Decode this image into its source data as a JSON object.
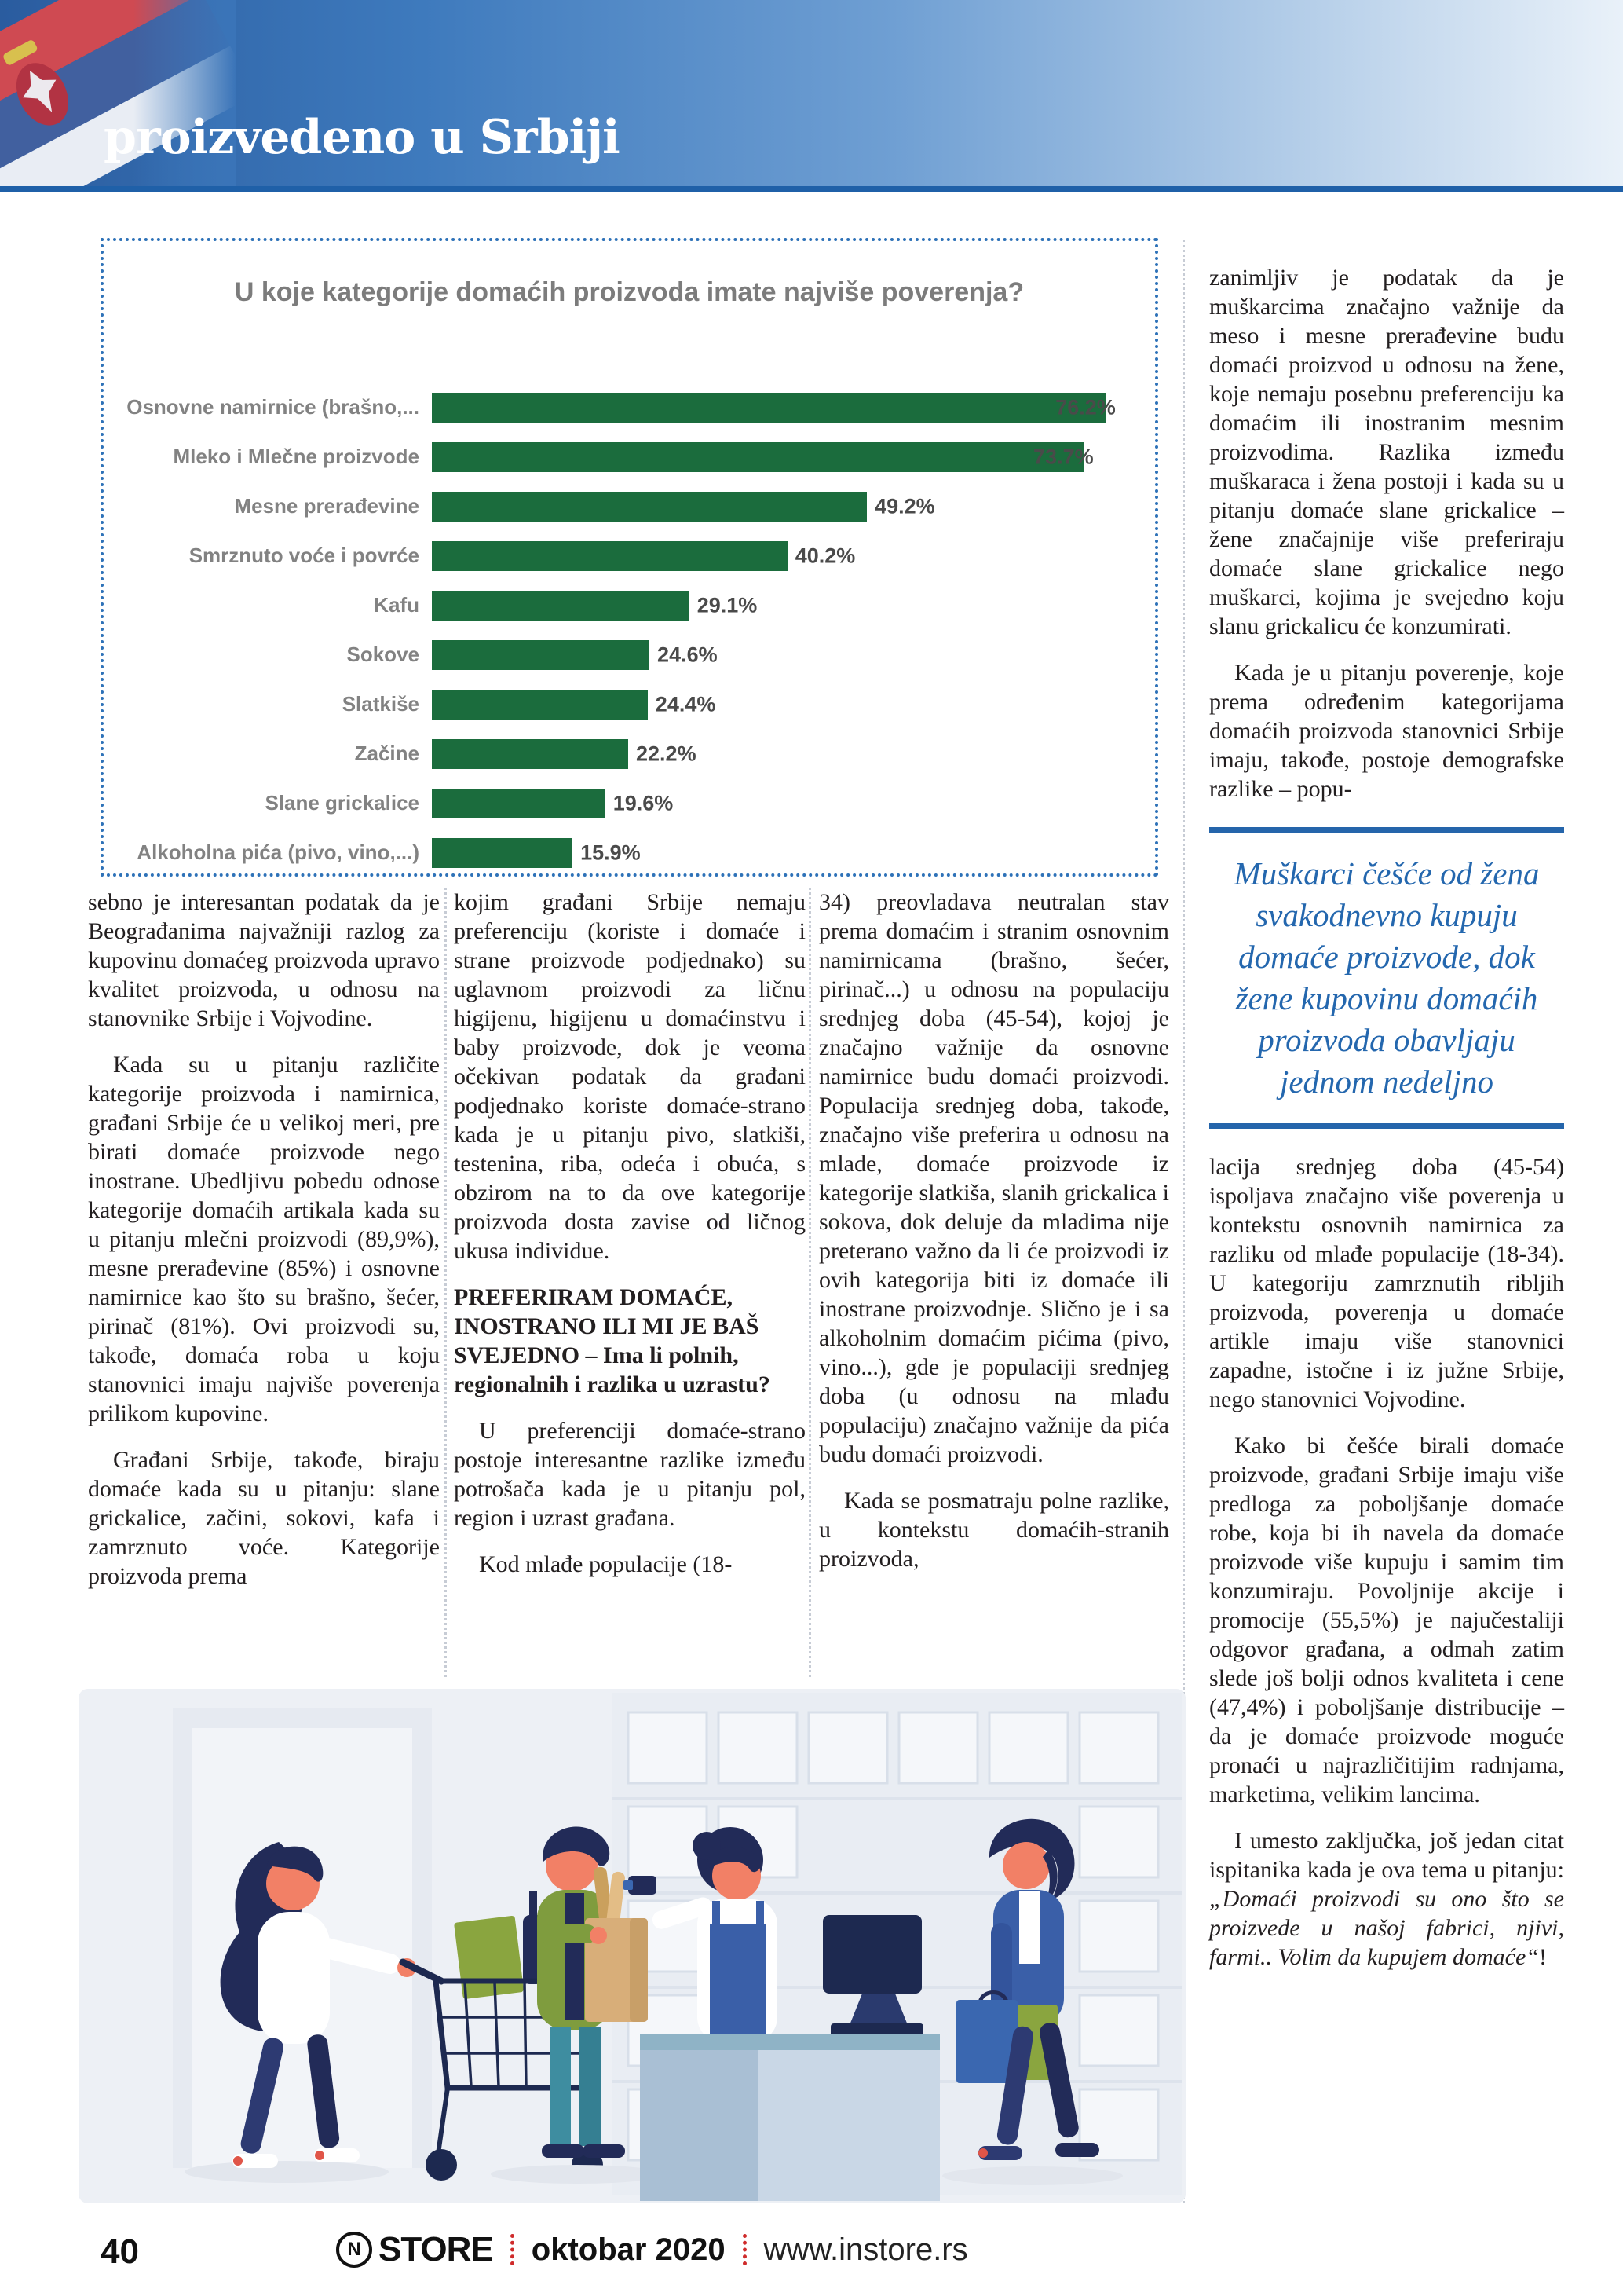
{
  "header": {
    "title": "proizvedeno u Srbiji"
  },
  "chart_data": {
    "type": "bar",
    "orientation": "horizontal",
    "title": "U koje kategorije domaćih proizvoda imate najviše poverenja?",
    "categories": [
      "Osnovne namirnice (brašno,...",
      "Mleko i Mlečne proizvode",
      "Mesne prerađevine",
      "Smrznuto voće i povrće",
      "Kafu",
      "Sokove",
      "Slatkiše",
      "Začine",
      "Slane grickalice",
      "Alkoholna pića (pivo, vino,...)"
    ],
    "values": [
      76.2,
      73.7,
      49.2,
      40.2,
      29.1,
      24.6,
      24.4,
      22.2,
      19.6,
      15.9
    ],
    "value_labels": [
      "76.2%",
      "73.7%",
      "49.2%",
      "40.2%",
      "29.1%",
      "24.6%",
      "24.4%",
      "22.2%",
      "19.6%",
      "15.9%"
    ],
    "xlim": [
      0,
      80
    ],
    "bar_color": "#1b6c3d",
    "grid": false,
    "legend": false
  },
  "article": {
    "col1": {
      "p1": "sebno je interesantan podatak da je Beograđanima najvažniji razlog za kupovinu domaćeg proizvoda upravo kvalitet proizvoda, u odnosu na stanovnike Srbije i Vojvodine.",
      "p2": "Kada su u pitanju različite kategorije proizvoda i namirnica, građani Srbije će u velikoj meri, pre birati domaće proizvode nego inostrane. Ubedljivu pobedu odnose kategorije domaćih artikala kada su u pitanju mlečni proizvodi (89,9%), mesne prerađevine (85%) i osnovne namirnice kao što su brašno, šećer, pirinač (81%). Ovi proizvodi su, takođe, domaća roba u koju stanovnici imaju najviše poverenja prilikom kupovine.",
      "p3": "Građani Srbije, takođe, biraju domaće kada su u pitanju: slane grickalice, začini, sokovi, kafa i zamrznuto voće. Kategorije proizvoda prema"
    },
    "col2": {
      "p1": "kojim građani Srbije nemaju preferenciju (koriste i domaće i strane proizvode podjednako) su uglavnom proizvodi za ličnu higijenu, higijenu u domaćinstvu i baby proizvode, dok je veoma očekivan podatak da građani podjednako koriste domaće-strano kada je u pitanju pivo, slatkiši, testenina, riba, odeća i obuća, s obzirom na to da ove kategorije proizvoda dosta zavise od ličnog ukusa individue.",
      "heading": "PREFERIRAM DOMAĆE, INOSTRANO ILI MI JE BAŠ SVEJEDNO – Ima li polnih, regionalnih i razlika u uzrastu?",
      "p2": "U preferenciji domaće-strano postoje interesantne razlike između potrošača kada je u pitanju pol, region i uzrast građana.",
      "p3": "Kod mlađe populacije (18-"
    },
    "col3": {
      "p1": "34) preovladava neutralan stav prema domaćim i stranim osnovnim namirnicama (brašno, šećer, pirinač...) u odnosu na populaciju srednjeg doba (45-54), kojoj je značajno važnije da osnovne namirnice budu domaći proizvodi. Populacija srednjeg doba, takođe, značajno više preferira u odnosu na mlade, domaće proizvode iz kategorije slatkiša, slanih grickalica i sokova, dok deluje da mladima nije preterano važno da li će proizvodi iz ovih kategorija biti iz domaće ili inostrane proizvodnje. Slično je i sa alkoholnim domaćim pićima (pivo, vino...), gde je populaciji srednjeg doba (u odnosu na mlađu populaciju) značajno važnije da pića budu domaći proizvodi.",
      "p2": "Kada se posmatraju polne razlike, u kontekstu domaćih-stranih proizvoda,"
    },
    "sidebar": {
      "p1": "zanimljiv je podatak da je muškarcima značajno važnije da meso i mesne prerađevine budu domaći proizvod u odnosu na žene, koje nemaju posebnu preferenciju ka domaćim ili inostranim mesnim proizvodima. Razlika između muškaraca i žena postoji i kada su u pitanju domaće slane grickalice – žene značajnije više preferiraju domaće slane grickalice nego muškarci, kojima je svejedno koju slanu grickalicu će konzumirati.",
      "p2": "Kada je u pitanju poverenje, koje prema određenim kategorijama domaćih proizvoda stanovnici Srbije imaju, takođe, postoje demografske razlike – popu-",
      "pull_quote": "Muškarci češće od žena svakodnevno kupuju domaće proizvode, dok žene kupovinu domaćih proizvoda obavljaju jednom nedeljno",
      "p3": "lacija srednjeg doba (45-54) ispoljava značajno više poverenja u kontekstu osnovnih namirnica za razliku od mlađe populacije (18-34). U kategoriju zamrznutih ribljih proizvoda, poverenja u domaće artikle imaju više stanovnici zapadne, istočne i iz južne Srbije, nego stanovnici Vojvodine.",
      "p4": "Kako bi češće birali domaće proizvode, građani Srbije imaju više predloga za poboljšanje domaće robe, koja bi ih navela da domaće proizvode više kupuju i samim tim konzumiraju. Povoljnije akcije i promocije (55,5%) je najučestaliji odgovor građana, a odmah zatim slede još bolji odnos kvaliteta i cene (47,4%) i poboljšanje distribucije – da je domaće proizvode moguće pronaći u najrazličitijim radnjama, marketima, velikim lancima.",
      "p5_prefix": "I umesto zaključka, još jedan citat ispitanika kada je ova tema u pitanju: ",
      "p5_quote": "„Domaći proizvodi su ono što se proizvede u našoj fabrici, njivi, farmi.. Volim da kupujem domaće“",
      "p5_suffix": "!"
    }
  },
  "footer": {
    "page_number": "40",
    "brand_icon_letter": "N",
    "brand_name": "STORE",
    "issue": "oktobar 2020",
    "website": "www.instore.rs"
  },
  "colors": {
    "accent_blue": "#2467ae",
    "banner_blue": "#3e7abd",
    "bar_green": "#1b6c3d",
    "footer_separator_red": "#cf2b2b"
  }
}
